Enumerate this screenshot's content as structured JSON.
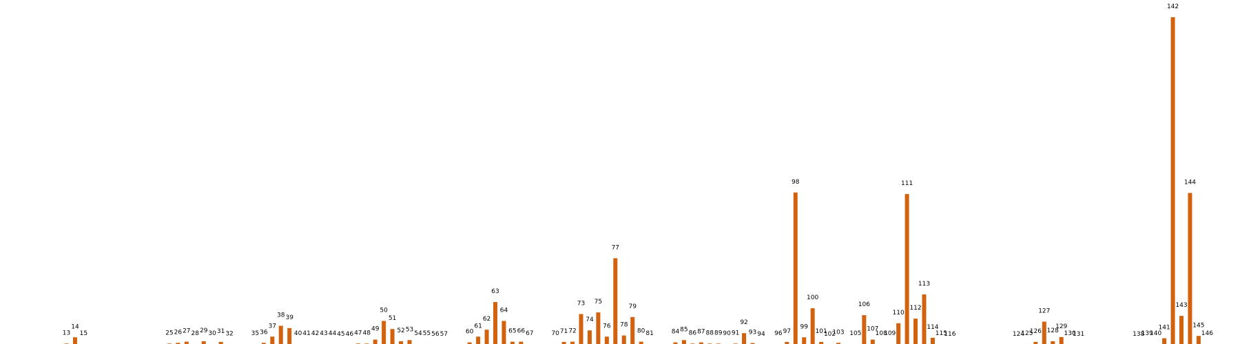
{
  "chart_data": {
    "type": "bar",
    "title": "",
    "xlabel": "",
    "ylabel": "",
    "ylim": [
      0,
      142
    ],
    "grid": false,
    "legend": "none",
    "bar_color": "#d2620d",
    "x": [
      13,
      14,
      15,
      25,
      26,
      27,
      28,
      29,
      30,
      31,
      32,
      35,
      36,
      37,
      38,
      39,
      40,
      41,
      42,
      43,
      44,
      45,
      46,
      47,
      48,
      49,
      50,
      51,
      52,
      53,
      54,
      55,
      56,
      57,
      60,
      61,
      62,
      63,
      64,
      65,
      66,
      67,
      70,
      71,
      72,
      73,
      74,
      75,
      76,
      77,
      78,
      79,
      80,
      81,
      84,
      85,
      86,
      87,
      88,
      89,
      90,
      91,
      92,
      93,
      94,
      96,
      97,
      98,
      99,
      100,
      101,
      102,
      103,
      105,
      106,
      107,
      108,
      109,
      110,
      111,
      112,
      113,
      114,
      115,
      116,
      124,
      125,
      126,
      127,
      128,
      129,
      130,
      131,
      138,
      139,
      140,
      141,
      142,
      143,
      144,
      145,
      146
    ],
    "values": [
      0.5,
      3.2,
      0.3,
      0.5,
      0.8,
      1.3,
      0.3,
      1.5,
      0.3,
      1.2,
      0.1,
      0.3,
      0.8,
      3.5,
      8.2,
      7.2,
      0.3,
      0.3,
      0.3,
      0.3,
      0.3,
      0,
      0,
      0.5,
      0.5,
      2.2,
      10.3,
      6.8,
      1.5,
      2,
      0.3,
      0.3,
      0,
      0,
      1,
      3.5,
      6.5,
      18.5,
      10.3,
      1.3,
      1.3,
      0.3,
      0.3,
      1.2,
      1.3,
      13.3,
      6.2,
      14,
      3.5,
      37.5,
      4,
      12,
      1.3,
      0.3,
      1,
      2,
      0.5,
      1,
      0.5,
      0.5,
      0.3,
      0.5,
      5,
      0.7,
      0,
      0.3,
      1.2,
      66,
      3.2,
      15.8,
      1.2,
      0,
      0.8,
      0.3,
      12.8,
      2.2,
      0.3,
      0.3,
      9.3,
      65.3,
      11.3,
      21.8,
      3,
      0.3,
      0,
      0,
      0.3,
      1.2,
      10,
      1.5,
      3.3,
      0.3,
      0,
      0,
      0.3,
      0.3,
      2.8,
      142,
      12.5,
      65.8,
      3.8,
      0.3
    ]
  }
}
